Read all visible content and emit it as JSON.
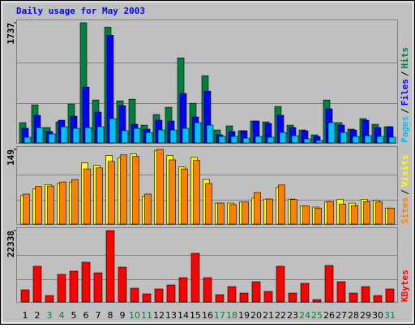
{
  "chart_data": [
    {
      "type": "bar",
      "title": "Daily usage for May 2003",
      "ylim": [
        0,
        1737
      ],
      "yticks": [
        1737
      ],
      "legend_separator": "/",
      "series": [
        {
          "name": "Pages",
          "color": "#00c0ff",
          "values": [
            82,
            222,
            129,
            234,
            211,
            222,
            234,
            351,
            176,
            211,
            152,
            187,
            187,
            211,
            293,
            257,
            94,
            94,
            70,
            94,
            82,
            152,
            105,
            59,
            35,
            293,
            152,
            94,
            105,
            94,
            82
          ]
        },
        {
          "name": "Files",
          "color": "#0000ff",
          "values": [
            211,
            398,
            164,
            328,
            386,
            807,
            445,
            1556,
            538,
            269,
            199,
            328,
            316,
            714,
            375,
            749,
            117,
            164,
            176,
            316,
            281,
            398,
            222,
            176,
            94,
            492,
            257,
            187,
            328,
            222,
            234
          ]
        },
        {
          "name": "Hits",
          "color": "#008040",
          "values": [
            293,
            550,
            222,
            305,
            562,
            1737,
            620,
            1673,
            608,
            632,
            257,
            410,
            515,
            1229,
            573,
            971,
            187,
            246,
            176,
            316,
            304,
            527,
            257,
            187,
            117,
            620,
            293,
            199,
            351,
            269,
            234
          ]
        }
      ]
    },
    {
      "type": "bar",
      "ylim": [
        0,
        149
      ],
      "yticks": [
        149
      ],
      "legend_separator": "/",
      "series": [
        {
          "name": "Sites",
          "color": "#ff8000",
          "values": [
            60,
            75,
            76,
            84,
            89,
            110,
            112,
            125,
            138,
            135,
            60,
            149,
            128,
            110,
            127,
            81,
            42,
            39,
            44,
            63,
            50,
            78,
            49,
            36,
            32,
            45,
            40,
            37,
            45,
            44,
            32
          ]
        },
        {
          "name": "Visits",
          "color": "#ffff00",
          "values": [
            57,
            70,
            79,
            81,
            84,
            122,
            117,
            137,
            132,
            140,
            55,
            147,
            137,
            114,
            133,
            89,
            42,
            42,
            44,
            52,
            50,
            73,
            50,
            36,
            34,
            44,
            49,
            42,
            49,
            47,
            32
          ]
        }
      ]
    },
    {
      "type": "bar",
      "ylim": [
        0,
        22338
      ],
      "yticks": [
        22338
      ],
      "categories": [
        "1",
        "2",
        "3",
        "4",
        "5",
        "6",
        "7",
        "8",
        "9",
        "10",
        "11",
        "12",
        "13",
        "14",
        "15",
        "16",
        "17",
        "18",
        "19",
        "20",
        "21",
        "22",
        "23",
        "24",
        "25",
        "26",
        "27",
        "28",
        "29",
        "30",
        "31"
      ],
      "category_colors": [
        "#000000",
        "#000000",
        "#008040",
        "#008040",
        "#000000",
        "#000000",
        "#000000",
        "#000000",
        "#000000",
        "#008040",
        "#008040",
        "#000000",
        "#000000",
        "#000000",
        "#000000",
        "#000000",
        "#008040",
        "#008040",
        "#000000",
        "#000000",
        "#000000",
        "#000000",
        "#000000",
        "#008040",
        "#008040",
        "#000000",
        "#000000",
        "#000000",
        "#000000",
        "#000000",
        "#008040"
      ],
      "series": [
        {
          "name": "KBytes",
          "color": "#ff0000",
          "values": [
            3808,
            11169,
            2031,
            8630,
            9652,
            12446,
            9138,
            22338,
            10915,
            4315,
            2538,
            4061,
            5330,
            7615,
            15230,
            7615,
            2284,
            4823,
            2792,
            6346,
            3300,
            11169,
            2792,
            5838,
            761,
            11423,
            6346,
            2792,
            4823,
            2031,
            4061
          ]
        }
      ]
    }
  ]
}
